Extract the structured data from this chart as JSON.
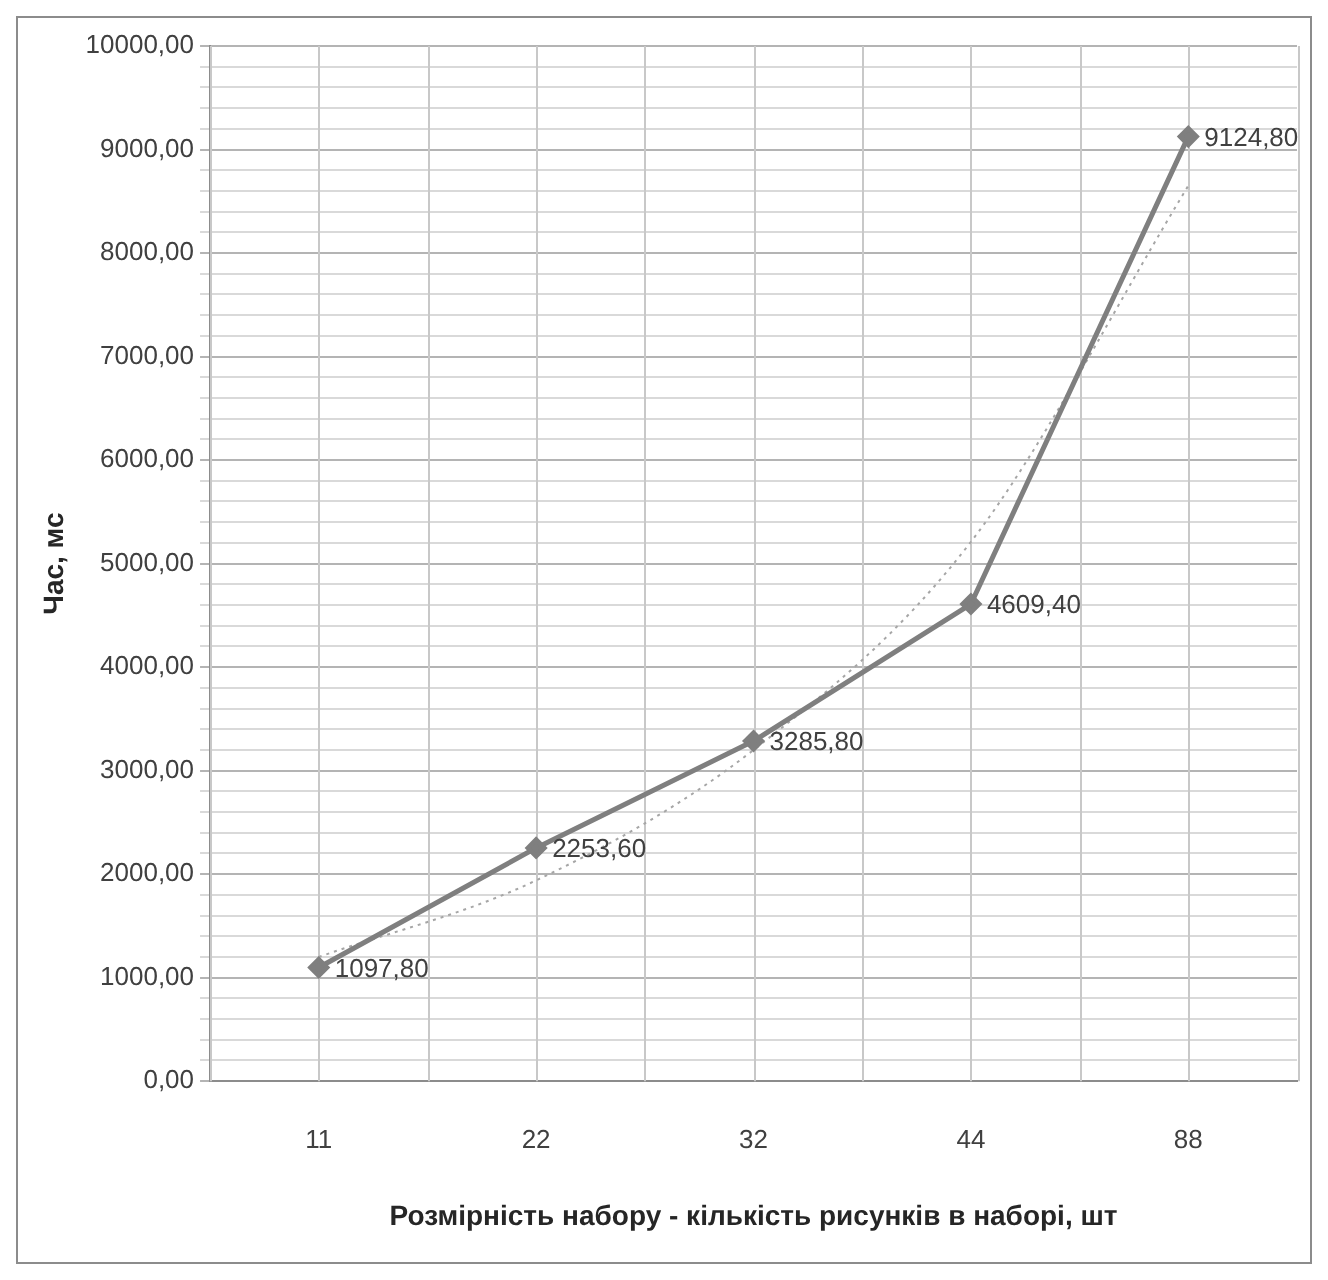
{
  "chart_data": {
    "type": "line",
    "xlabel": "Розмірність набору - кількість рисунків в наборі, шт",
    "ylabel": "Час, мс",
    "categories": [
      "11",
      "22",
      "32",
      "44",
      "88"
    ],
    "series": [
      {
        "color": "#7f7f7f",
        "values": [
          1097.8,
          2253.6,
          3285.8,
          4609.4,
          9124.8
        ],
        "value_labels": [
          "1097,80",
          "2253,60",
          "3285,80",
          "4609,40",
          "9124,80"
        ],
        "marker": "diamond",
        "line_style": "solid"
      },
      {
        "color": "#a6a6a6",
        "values": [
          1200,
          1940,
          3200,
          5210,
          8650
        ],
        "marker": "none",
        "line_style": "dotted"
      }
    ],
    "ylim": [
      0,
      10000
    ],
    "yticks": [
      {
        "value": 0,
        "label": "0,00"
      },
      {
        "value": 200,
        "label": null
      },
      {
        "value": 400,
        "label": null
      },
      {
        "value": 600,
        "label": null
      },
      {
        "value": 800,
        "label": null
      },
      {
        "value": 1000,
        "label": "1000,00"
      },
      {
        "value": 1200,
        "label": null
      },
      {
        "value": 1400,
        "label": null
      },
      {
        "value": 1600,
        "label": null
      },
      {
        "value": 1800,
        "label": null
      },
      {
        "value": 2000,
        "label": "2000,00"
      },
      {
        "value": 2200,
        "label": null
      },
      {
        "value": 2400,
        "label": null
      },
      {
        "value": 2600,
        "label": null
      },
      {
        "value": 2800,
        "label": null
      },
      {
        "value": 3000,
        "label": "3000,00"
      },
      {
        "value": 3200,
        "label": null
      },
      {
        "value": 3400,
        "label": null
      },
      {
        "value": 3600,
        "label": null
      },
      {
        "value": 3800,
        "label": null
      },
      {
        "value": 4000,
        "label": "4000,00"
      },
      {
        "value": 4200,
        "label": null
      },
      {
        "value": 4400,
        "label": null
      },
      {
        "value": 4600,
        "label": null
      },
      {
        "value": 4800,
        "label": null
      },
      {
        "value": 5000,
        "label": "5000,00"
      },
      {
        "value": 5200,
        "label": null
      },
      {
        "value": 5400,
        "label": null
      },
      {
        "value": 5600,
        "label": null
      },
      {
        "value": 5800,
        "label": null
      },
      {
        "value": 6000,
        "label": "6000,00"
      },
      {
        "value": 6200,
        "label": null
      },
      {
        "value": 6400,
        "label": null
      },
      {
        "value": 6600,
        "label": null
      },
      {
        "value": 6800,
        "label": null
      },
      {
        "value": 7000,
        "label": "7000,00"
      },
      {
        "value": 7200,
        "label": null
      },
      {
        "value": 7400,
        "label": null
      },
      {
        "value": 7600,
        "label": null
      },
      {
        "value": 7800,
        "label": null
      },
      {
        "value": 8000,
        "label": "8000,00"
      },
      {
        "value": 8200,
        "label": null
      },
      {
        "value": 8400,
        "label": null
      },
      {
        "value": 8600,
        "label": null
      },
      {
        "value": 8800,
        "label": null
      },
      {
        "value": 9000,
        "label": "9000,00"
      },
      {
        "value": 9200,
        "label": null
      },
      {
        "value": 9400,
        "label": null
      },
      {
        "value": 9600,
        "label": null
      },
      {
        "value": 9800,
        "label": null
      },
      {
        "value": 10000,
        "label": "10000,00"
      }
    ],
    "grid": true,
    "legend": false
  }
}
